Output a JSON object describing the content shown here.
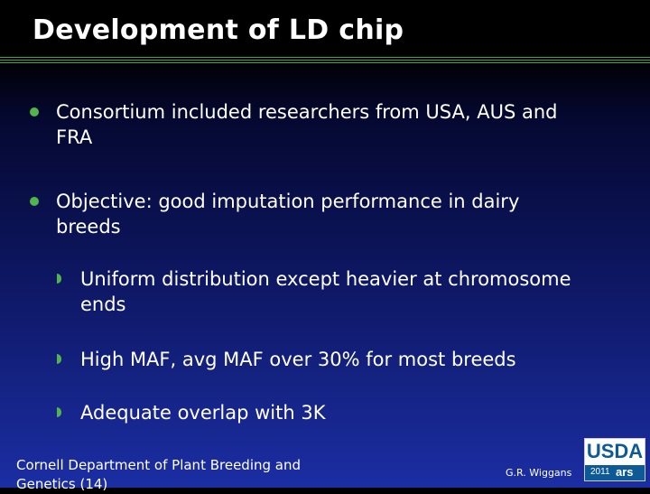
{
  "slide": {
    "title": "Development of LD chip",
    "bullets": [
      {
        "line1": "Consortium included researchers from USA, AUS and",
        "line2": "FRA"
      },
      {
        "line1": "Objective: good imputation performance in dairy",
        "line2": "breeds"
      }
    ],
    "sub_bullets": [
      {
        "line1": "Uniform distribution except heavier at chromosome",
        "line2": "ends"
      },
      {
        "line1": "High MAF, avg MAF over 30% for most breeds"
      },
      {
        "line1": "Adequate overlap with 3K"
      }
    ]
  },
  "footer": {
    "left_line1": "Cornell Department of Plant Breeding and",
    "left_line2": "Genetics (14)",
    "author": "G.R. Wiggans"
  },
  "logo": {
    "word": "USDA",
    "year": "2011",
    "mark": "ars"
  },
  "colors": {
    "accent_green": "#52b54b",
    "rule_green": "#3fa64a",
    "background_top": "#000000",
    "background_bottom": "#1b2ea3"
  }
}
